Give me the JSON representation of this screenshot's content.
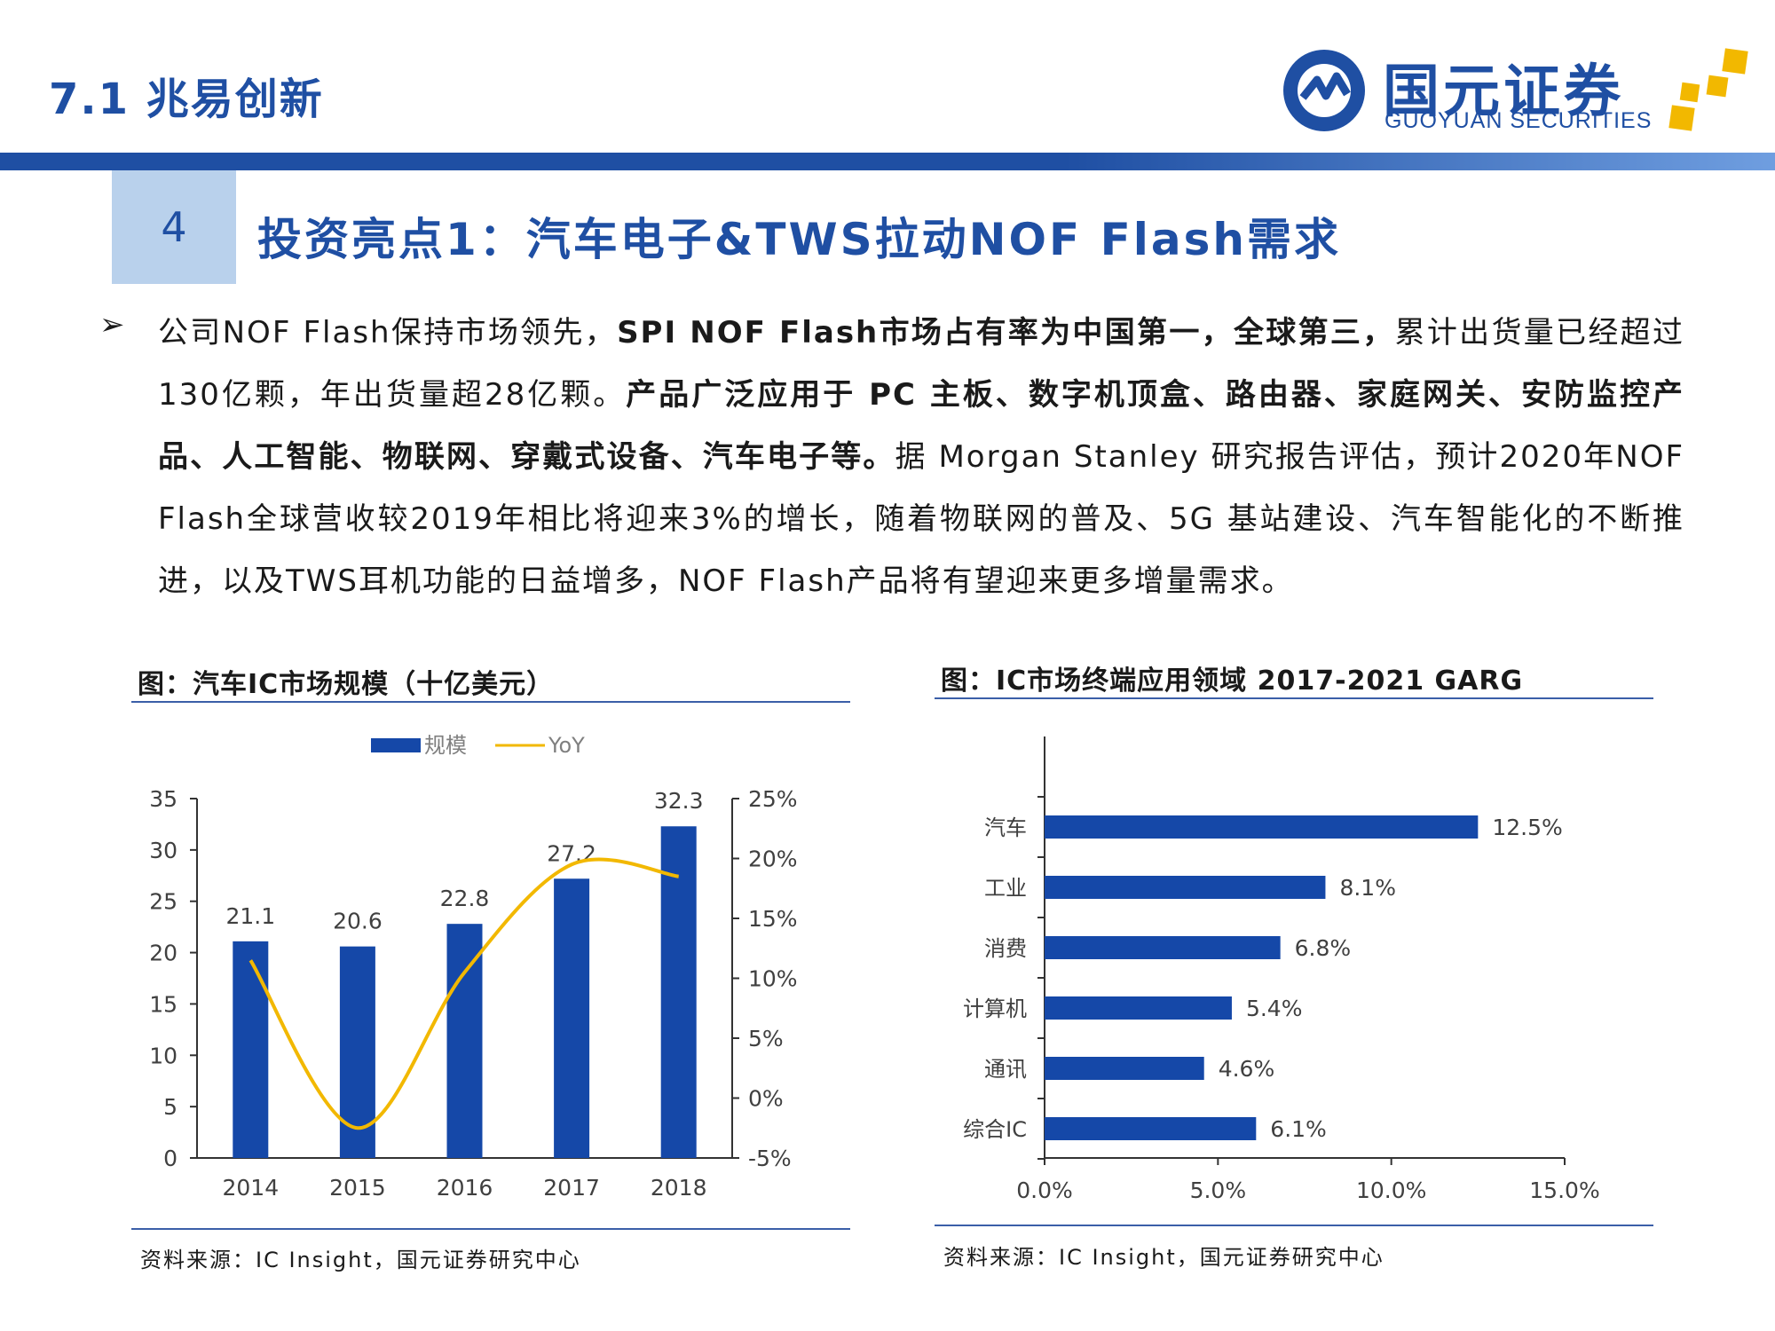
{
  "header": {
    "section_title": "7.1 兆易创新",
    "logo_cn": "国元证券",
    "logo_en": "GUOYUAN SECURITIES"
  },
  "slide": {
    "number": "4",
    "headline": "投资亮点1：汽车电子&TWS拉动NOF Flash需求"
  },
  "paragraph": {
    "bullet": "➢",
    "p1": "公司NOF Flash保持市场领先，",
    "p2_bold": "SPI NOF Flash市场占有率为中国第一，全球第三，",
    "p3": "累计出货量已经超过130亿颗，年出货量超28亿颗。",
    "p4_bold": "产品广泛应用于 PC 主板、数字机顶盒、路由器、家庭网关、安防监控产品、人工智能、物联网、穿戴式设备、汽车电子等。",
    "p5": "据 Morgan Stanley 研究报告评估，预计2020年NOF Flash全球营收较2019年相比将迎来3%的增长，随着物联网的普及、5G 基站建设、汽车智能化的不断推进，以及TWS耳机功能的日益增多，NOF Flash产品将有望迎来更多增量需求。"
  },
  "left_chart": {
    "title": "图：汽车IC市场规模（十亿美元）",
    "source": "资料来源：IC Insight，国元证券研究中心"
  },
  "right_chart": {
    "title": "图：IC市场终端应用领域 2017-2021 GARG",
    "source": "资料来源：IC Insight，国元证券研究中心"
  },
  "colors": {
    "brand": "#1f4fa3",
    "bar": "#1548a8",
    "line": "#f2b800"
  },
  "chart_data": [
    {
      "type": "bar",
      "categories": [
        "2014",
        "2015",
        "2016",
        "2017",
        "2018"
      ],
      "series": [
        {
          "name": "规模",
          "type": "bar",
          "axis": "left",
          "values": [
            21.1,
            20.6,
            22.8,
            27.2,
            32.3
          ]
        },
        {
          "name": "YoY",
          "type": "line",
          "axis": "right",
          "values": [
            11.5,
            -2.5,
            10.5,
            19.5,
            18.5
          ]
        }
      ],
      "ylim": [
        0,
        35
      ],
      "yticks": [
        "0",
        "5",
        "10",
        "15",
        "20",
        "25",
        "30",
        "35"
      ],
      "y2lim": [
        -5,
        25
      ],
      "y2ticks": [
        "-5%",
        "0%",
        "5%",
        "10%",
        "15%",
        "20%",
        "25%"
      ],
      "data_labels": [
        "21.1",
        "20.6",
        "22.8",
        "27.2",
        "32.3"
      ],
      "legend": "top"
    },
    {
      "type": "bar",
      "orientation": "horizontal",
      "categories": [
        "汽车",
        "工业",
        "消费",
        "计算机",
        "通讯",
        "综合IC"
      ],
      "values": [
        12.5,
        8.1,
        6.8,
        5.4,
        4.6,
        6.1
      ],
      "data_labels": [
        "12.5%",
        "8.1%",
        "6.8%",
        "5.4%",
        "4.6%",
        "6.1%"
      ],
      "xlim": [
        0,
        15
      ],
      "xticks": [
        "0.0%",
        "5.0%",
        "10.0%",
        "15.0%"
      ]
    }
  ]
}
